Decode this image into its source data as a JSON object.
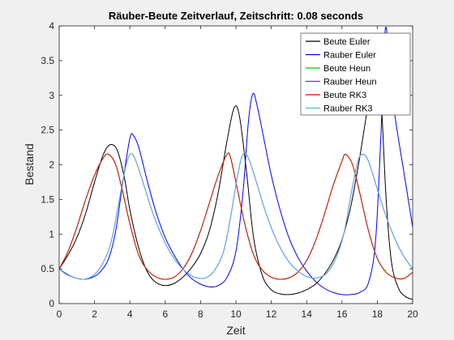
{
  "chart_data": {
    "type": "line",
    "title": "Räuber-Beute Zeitverlauf, Zeitschritt: 0.08 seconds",
    "xlabel": "Zeit",
    "ylabel": "Bestand",
    "xlim": [
      0,
      20
    ],
    "ylim": [
      0,
      4
    ],
    "xticks": [
      0,
      2,
      4,
      6,
      8,
      10,
      12,
      14,
      16,
      18,
      20
    ],
    "yticks": [
      0,
      0.5,
      1,
      1.5,
      2,
      2.5,
      3,
      3.5,
      4
    ],
    "xtick_labels": [
      "0",
      "2",
      "4",
      "6",
      "8",
      "10",
      "12",
      "14",
      "16",
      "18",
      "20"
    ],
    "ytick_labels": [
      "0",
      "0.5",
      "1",
      "1.5",
      "2",
      "2.5",
      "3",
      "3.5",
      "4"
    ],
    "grid": false,
    "legend_position": "top-right",
    "series": [
      {
        "name": "Beute Euler",
        "color": "#000000",
        "points": [
          [
            0,
            0.5
          ],
          [
            0.5,
            0.7
          ],
          [
            1.0,
            0.95
          ],
          [
            1.5,
            1.3
          ],
          [
            2.0,
            1.75
          ],
          [
            2.5,
            2.15
          ],
          [
            2.9,
            2.29
          ],
          [
            3.3,
            2.2
          ],
          [
            3.7,
            1.8
          ],
          [
            4.0,
            1.35
          ],
          [
            4.5,
            0.8
          ],
          [
            5.0,
            0.45
          ],
          [
            5.5,
            0.3
          ],
          [
            6.0,
            0.26
          ],
          [
            6.5,
            0.29
          ],
          [
            7.0,
            0.38
          ],
          [
            7.5,
            0.52
          ],
          [
            8.0,
            0.72
          ],
          [
            8.5,
            1.05
          ],
          [
            9.0,
            1.6
          ],
          [
            9.5,
            2.35
          ],
          [
            9.9,
            2.82
          ],
          [
            10.2,
            2.7
          ],
          [
            10.6,
            1.9
          ],
          [
            11.0,
            0.95
          ],
          [
            11.5,
            0.4
          ],
          [
            12.0,
            0.2
          ],
          [
            12.5,
            0.14
          ],
          [
            13.0,
            0.13
          ],
          [
            13.5,
            0.15
          ],
          [
            14.0,
            0.2
          ],
          [
            14.5,
            0.28
          ],
          [
            15.0,
            0.42
          ],
          [
            15.5,
            0.62
          ],
          [
            16.0,
            0.92
          ],
          [
            16.5,
            1.4
          ],
          [
            17.0,
            2.1
          ],
          [
            17.5,
            2.9
          ],
          [
            17.9,
            3.45
          ],
          [
            18.2,
            3.0
          ],
          [
            18.5,
            1.5
          ],
          [
            18.8,
            0.6
          ],
          [
            19.2,
            0.22
          ],
          [
            19.6,
            0.1
          ],
          [
            20.0,
            0.06
          ]
        ]
      },
      {
        "name": "Rauber Euler",
        "color": "#0000ff",
        "points": [
          [
            0,
            0.5
          ],
          [
            0.4,
            0.43
          ],
          [
            0.8,
            0.38
          ],
          [
            1.3,
            0.35
          ],
          [
            1.8,
            0.37
          ],
          [
            2.3,
            0.45
          ],
          [
            2.8,
            0.65
          ],
          [
            3.2,
            1.05
          ],
          [
            3.6,
            1.75
          ],
          [
            4.0,
            2.38
          ],
          [
            4.2,
            2.42
          ],
          [
            4.5,
            2.25
          ],
          [
            5.0,
            1.75
          ],
          [
            5.5,
            1.3
          ],
          [
            6.0,
            0.95
          ],
          [
            6.5,
            0.7
          ],
          [
            7.0,
            0.5
          ],
          [
            7.5,
            0.36
          ],
          [
            8.0,
            0.28
          ],
          [
            8.5,
            0.24
          ],
          [
            9.0,
            0.26
          ],
          [
            9.5,
            0.38
          ],
          [
            10.0,
            0.75
          ],
          [
            10.4,
            1.6
          ],
          [
            10.7,
            2.6
          ],
          [
            10.95,
            3.02
          ],
          [
            11.2,
            2.85
          ],
          [
            11.6,
            2.35
          ],
          [
            12.0,
            1.85
          ],
          [
            12.5,
            1.35
          ],
          [
            13.0,
            0.95
          ],
          [
            13.5,
            0.67
          ],
          [
            14.0,
            0.47
          ],
          [
            14.5,
            0.32
          ],
          [
            15.0,
            0.22
          ],
          [
            15.5,
            0.16
          ],
          [
            16.0,
            0.13
          ],
          [
            16.5,
            0.13
          ],
          [
            17.0,
            0.16
          ],
          [
            17.5,
            0.3
          ],
          [
            17.9,
            0.9
          ],
          [
            18.2,
            2.4
          ],
          [
            18.45,
            3.95
          ],
          [
            18.7,
            3.4
          ],
          [
            19.0,
            2.7
          ],
          [
            19.5,
            1.9
          ],
          [
            20.0,
            1.1
          ]
        ]
      },
      {
        "name": "Beute Heun",
        "color": "#00cc00",
        "points": [
          [
            0,
            0.5
          ],
          [
            0.5,
            0.75
          ],
          [
            1.0,
            1.1
          ],
          [
            1.5,
            1.5
          ],
          [
            2.0,
            1.85
          ],
          [
            2.5,
            2.1
          ],
          [
            2.8,
            2.15
          ],
          [
            3.2,
            2.0
          ],
          [
            3.6,
            1.6
          ],
          [
            4.0,
            1.15
          ],
          [
            4.5,
            0.7
          ],
          [
            5.0,
            0.48
          ],
          [
            5.5,
            0.38
          ],
          [
            6.0,
            0.35
          ],
          [
            6.5,
            0.38
          ],
          [
            7.0,
            0.5
          ],
          [
            7.5,
            0.72
          ],
          [
            8.0,
            1.05
          ],
          [
            8.5,
            1.45
          ],
          [
            9.0,
            1.85
          ],
          [
            9.5,
            2.15
          ],
          [
            9.7,
            2.1
          ],
          [
            10.0,
            1.75
          ],
          [
            10.5,
            1.15
          ],
          [
            11.0,
            0.7
          ],
          [
            11.5,
            0.48
          ],
          [
            12.0,
            0.38
          ],
          [
            12.5,
            0.35
          ],
          [
            13.0,
            0.37
          ],
          [
            13.5,
            0.45
          ],
          [
            14.0,
            0.62
          ],
          [
            14.5,
            0.9
          ],
          [
            15.0,
            1.28
          ],
          [
            15.5,
            1.7
          ],
          [
            16.0,
            2.05
          ],
          [
            16.2,
            2.15
          ],
          [
            16.6,
            2.0
          ],
          [
            17.0,
            1.6
          ],
          [
            17.5,
            1.05
          ],
          [
            18.0,
            0.65
          ],
          [
            18.5,
            0.45
          ],
          [
            19.0,
            0.37
          ],
          [
            19.5,
            0.36
          ],
          [
            20.0,
            0.45
          ]
        ]
      },
      {
        "name": "Rauber Heun",
        "color": "#cc00cc",
        "points": [
          [
            0,
            0.5
          ],
          [
            0.4,
            0.42
          ],
          [
            0.9,
            0.37
          ],
          [
            1.4,
            0.35
          ],
          [
            1.9,
            0.4
          ],
          [
            2.4,
            0.55
          ],
          [
            2.9,
            0.85
          ],
          [
            3.3,
            1.35
          ],
          [
            3.7,
            1.9
          ],
          [
            4.0,
            2.15
          ],
          [
            4.3,
            2.08
          ],
          [
            4.8,
            1.7
          ],
          [
            5.3,
            1.3
          ],
          [
            5.8,
            0.98
          ],
          [
            6.3,
            0.73
          ],
          [
            6.8,
            0.55
          ],
          [
            7.3,
            0.43
          ],
          [
            7.8,
            0.37
          ],
          [
            8.3,
            0.37
          ],
          [
            8.8,
            0.48
          ],
          [
            9.3,
            0.75
          ],
          [
            9.7,
            1.25
          ],
          [
            10.1,
            1.85
          ],
          [
            10.4,
            2.15
          ],
          [
            10.7,
            2.1
          ],
          [
            11.1,
            1.8
          ],
          [
            11.6,
            1.38
          ],
          [
            12.1,
            1.03
          ],
          [
            12.6,
            0.76
          ],
          [
            13.1,
            0.57
          ],
          [
            13.6,
            0.45
          ],
          [
            14.1,
            0.38
          ],
          [
            14.6,
            0.37
          ],
          [
            15.1,
            0.43
          ],
          [
            15.6,
            0.62
          ],
          [
            16.1,
            1.0
          ],
          [
            16.5,
            1.55
          ],
          [
            16.9,
            2.05
          ],
          [
            17.2,
            2.15
          ],
          [
            17.5,
            2.05
          ],
          [
            18.0,
            1.65
          ],
          [
            18.5,
            1.25
          ],
          [
            19.0,
            0.93
          ],
          [
            19.5,
            0.68
          ],
          [
            20.0,
            0.5
          ]
        ]
      },
      {
        "name": "Beute RK3",
        "color": "#e60000",
        "points": [
          [
            0,
            0.5
          ],
          [
            0.5,
            0.75
          ],
          [
            1.0,
            1.1
          ],
          [
            1.5,
            1.5
          ],
          [
            2.0,
            1.85
          ],
          [
            2.5,
            2.1
          ],
          [
            2.8,
            2.15
          ],
          [
            3.2,
            2.0
          ],
          [
            3.6,
            1.6
          ],
          [
            4.0,
            1.15
          ],
          [
            4.5,
            0.7
          ],
          [
            5.0,
            0.48
          ],
          [
            5.5,
            0.38
          ],
          [
            6.0,
            0.35
          ],
          [
            6.5,
            0.38
          ],
          [
            7.0,
            0.5
          ],
          [
            7.5,
            0.72
          ],
          [
            8.0,
            1.05
          ],
          [
            8.5,
            1.45
          ],
          [
            9.0,
            1.85
          ],
          [
            9.5,
            2.15
          ],
          [
            9.7,
            2.1
          ],
          [
            10.0,
            1.75
          ],
          [
            10.5,
            1.15
          ],
          [
            11.0,
            0.7
          ],
          [
            11.5,
            0.48
          ],
          [
            12.0,
            0.38
          ],
          [
            12.5,
            0.35
          ],
          [
            13.0,
            0.37
          ],
          [
            13.5,
            0.45
          ],
          [
            14.0,
            0.62
          ],
          [
            14.5,
            0.9
          ],
          [
            15.0,
            1.28
          ],
          [
            15.5,
            1.7
          ],
          [
            16.0,
            2.05
          ],
          [
            16.2,
            2.15
          ],
          [
            16.6,
            2.0
          ],
          [
            17.0,
            1.6
          ],
          [
            17.5,
            1.05
          ],
          [
            18.0,
            0.65
          ],
          [
            18.5,
            0.45
          ],
          [
            19.0,
            0.37
          ],
          [
            19.5,
            0.36
          ],
          [
            20.0,
            0.45
          ]
        ]
      },
      {
        "name": "Rauber RK3",
        "color": "#4db8e6",
        "points": [
          [
            0,
            0.5
          ],
          [
            0.4,
            0.42
          ],
          [
            0.9,
            0.37
          ],
          [
            1.4,
            0.35
          ],
          [
            1.9,
            0.4
          ],
          [
            2.4,
            0.55
          ],
          [
            2.9,
            0.85
          ],
          [
            3.3,
            1.35
          ],
          [
            3.7,
            1.9
          ],
          [
            4.0,
            2.15
          ],
          [
            4.3,
            2.08
          ],
          [
            4.8,
            1.7
          ],
          [
            5.3,
            1.3
          ],
          [
            5.8,
            0.98
          ],
          [
            6.3,
            0.73
          ],
          [
            6.8,
            0.55
          ],
          [
            7.3,
            0.43
          ],
          [
            7.8,
            0.37
          ],
          [
            8.3,
            0.37
          ],
          [
            8.8,
            0.48
          ],
          [
            9.3,
            0.75
          ],
          [
            9.7,
            1.25
          ],
          [
            10.1,
            1.85
          ],
          [
            10.4,
            2.15
          ],
          [
            10.7,
            2.1
          ],
          [
            11.1,
            1.8
          ],
          [
            11.6,
            1.38
          ],
          [
            12.1,
            1.03
          ],
          [
            12.6,
            0.76
          ],
          [
            13.1,
            0.57
          ],
          [
            13.6,
            0.45
          ],
          [
            14.1,
            0.38
          ],
          [
            14.6,
            0.37
          ],
          [
            15.1,
            0.43
          ],
          [
            15.6,
            0.62
          ],
          [
            16.1,
            1.0
          ],
          [
            16.5,
            1.55
          ],
          [
            16.9,
            2.05
          ],
          [
            17.2,
            2.15
          ],
          [
            17.5,
            2.05
          ],
          [
            18.0,
            1.65
          ],
          [
            18.5,
            1.25
          ],
          [
            19.0,
            0.93
          ],
          [
            19.5,
            0.68
          ],
          [
            20.0,
            0.5
          ]
        ]
      }
    ]
  }
}
